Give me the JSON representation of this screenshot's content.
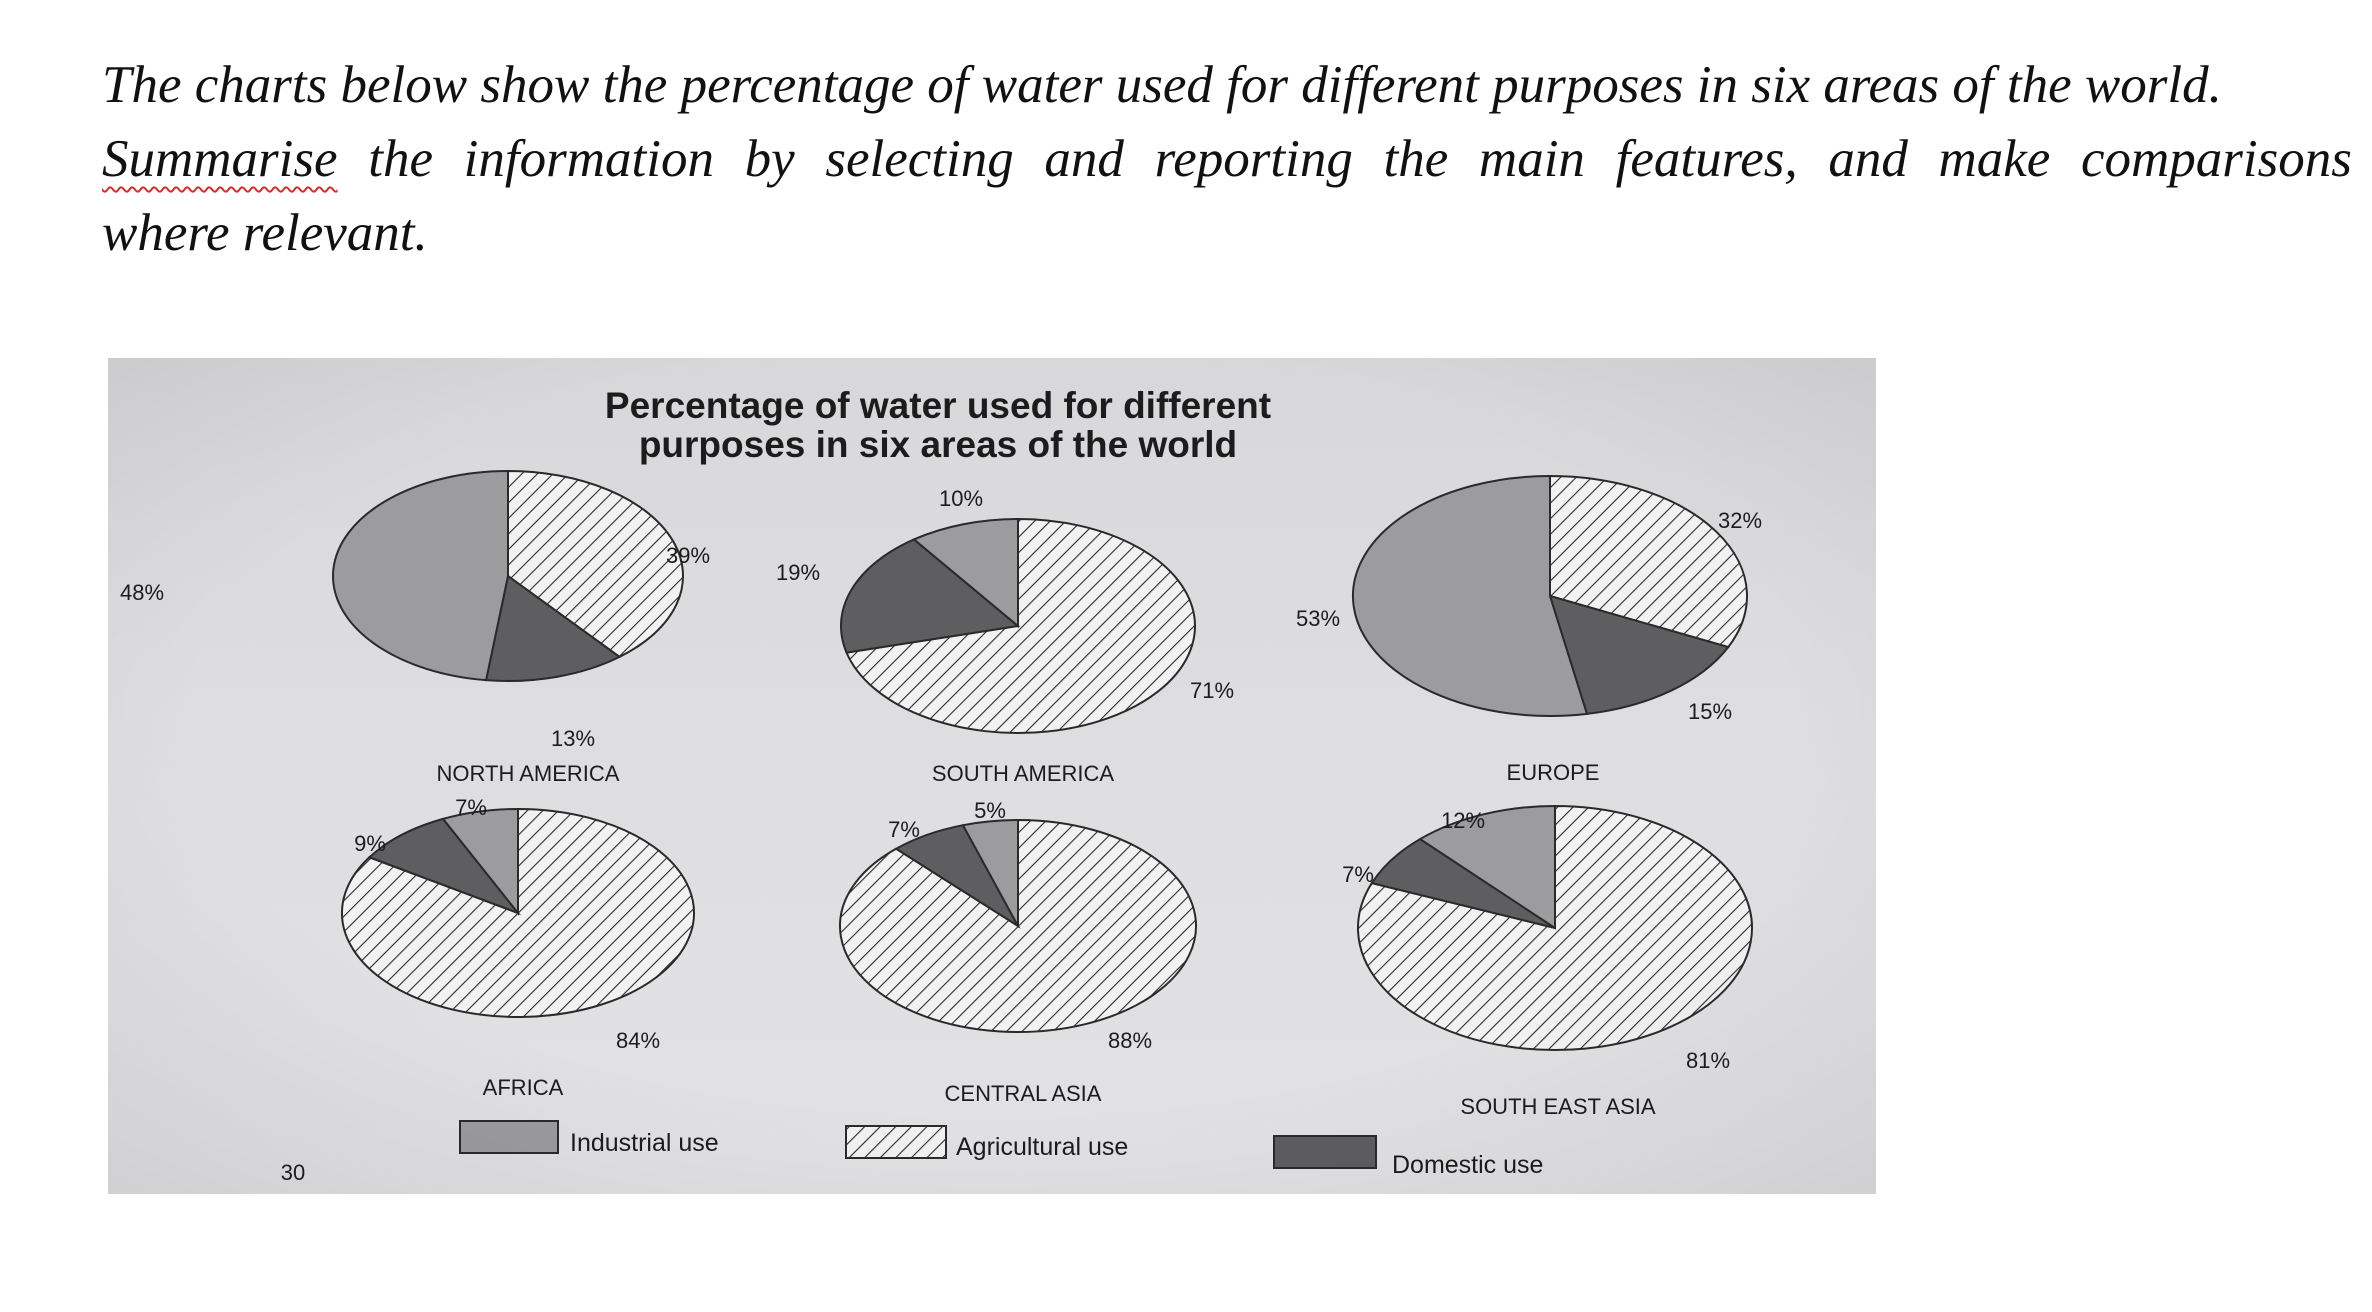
{
  "prompt": {
    "line1": "The charts below show the percentage of water used for different purposes in six areas of the world.",
    "line2_words": [
      "Summarise",
      "the",
      "information",
      "by",
      "selecting",
      "and",
      "reporting",
      "the",
      "main",
      "features,",
      "and",
      "make",
      "comparisons"
    ],
    "line3": "where relevant."
  },
  "page_number": "30",
  "chart_data": {
    "type": "pie",
    "title": "Percentage of water used for different purposes in six areas of the world",
    "title_lines": [
      "Percentage of water used for different",
      "purposes in six areas of the world"
    ],
    "categories": [
      "Industrial use",
      "Agricultural use",
      "Domestic use"
    ],
    "colors": {
      "Industrial use": "#9c9c9e",
      "Agricultural use": "hatch",
      "Domestic use": "#5e5e60"
    },
    "legend_position": "bottom",
    "charts": [
      {
        "name": "NORTH AMERICA",
        "values": {
          "Industrial use": 48,
          "Agricultural use": 39,
          "Domestic use": 13
        },
        "labels": {
          "Industrial use": "48%",
          "Agricultural use": "39%",
          "Domestic use": "13%"
        }
      },
      {
        "name": "SOUTH AMERICA",
        "values": {
          "Industrial use": 10,
          "Agricultural use": 71,
          "Domestic use": 19
        },
        "labels": {
          "Industrial use": "10%",
          "Agricultural use": "71%",
          "Domestic use": "19%"
        }
      },
      {
        "name": "EUROPE",
        "values": {
          "Industrial use": 53,
          "Agricultural use": 32,
          "Domestic use": 15
        },
        "labels": {
          "Industrial use": "53%",
          "Agricultural use": "32%",
          "Domestic use": "15%"
        }
      },
      {
        "name": "AFRICA",
        "values": {
          "Industrial use": 7,
          "Agricultural use": 84,
          "Domestic use": 9
        },
        "labels": {
          "Industrial use": "7%",
          "Agricultural use": "84%",
          "Domestic use": "9%"
        }
      },
      {
        "name": "CENTRAL ASIA",
        "values": {
          "Industrial use": 5,
          "Agricultural use": 88,
          "Domestic use": 7
        },
        "labels": {
          "Industrial use": "5%",
          "Agricultural use": "88%",
          "Domestic use": "7%"
        }
      },
      {
        "name": "SOUTH EAST ASIA",
        "values": {
          "Industrial use": 12,
          "Agricultural use": 81,
          "Domestic use": 7
        },
        "labels": {
          "Industrial use": "12%",
          "Agricultural use": "81%",
          "Domestic use": "7%"
        }
      }
    ]
  }
}
